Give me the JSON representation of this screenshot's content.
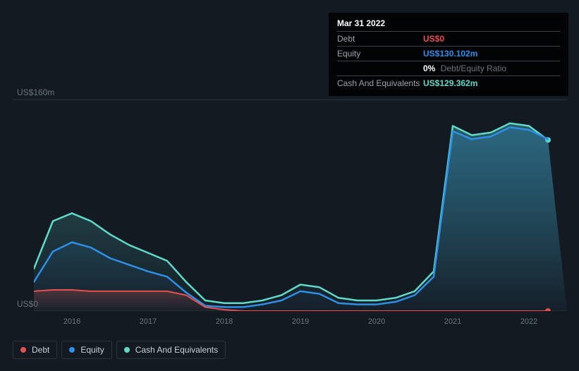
{
  "chart": {
    "type": "area",
    "background": "#131a22",
    "grid_color": "#2a333d",
    "ymax": 160,
    "ymin": 0,
    "ylabel_top": "US$160m",
    "ylabel_bottom": "US$0",
    "ylabel_color": "#6b7681",
    "xticks": [
      "2016",
      "2017",
      "2018",
      "2019",
      "2020",
      "2021",
      "2022"
    ],
    "x_start": 2015.5,
    "x_end": 2022.5,
    "x": [
      2015.5,
      2015.75,
      2016,
      2016.25,
      2016.5,
      2016.75,
      2017,
      2017.25,
      2017.5,
      2017.75,
      2018,
      2018.25,
      2018.5,
      2018.75,
      2019,
      2019.25,
      2019.5,
      2019.75,
      2020,
      2020.25,
      2020.5,
      2020.75,
      2021,
      2021.25,
      2021.5,
      2021.75,
      2022,
      2022.25
    ],
    "series": [
      {
        "key": "cash",
        "label": "Cash And Equivalents",
        "color": "#5fd9c9",
        "fill_from": "#2a5b5f",
        "fill_to": "rgba(42,91,95,0.05)",
        "stroke_width": 2.5,
        "values": [
          32,
          68,
          74,
          68,
          58,
          50,
          44,
          38,
          22,
          8,
          6,
          6,
          8,
          12,
          20,
          18,
          10,
          8,
          8,
          10,
          15,
          30,
          140,
          133,
          135,
          142,
          140,
          129.362
        ],
        "end_marker": true
      },
      {
        "key": "equity",
        "label": "Equity",
        "color": "#2f8fe6",
        "fill_from": "rgba(47,143,230,0.25)",
        "fill_to": "rgba(47,143,230,0.02)",
        "stroke_width": 2.5,
        "values": [
          22,
          45,
          52,
          48,
          40,
          35,
          30,
          26,
          14,
          4,
          3,
          3,
          5,
          8,
          15,
          13,
          6,
          5,
          5,
          7,
          12,
          26,
          136,
          130,
          132,
          139,
          137,
          130.102
        ],
        "end_marker": false
      },
      {
        "key": "debt",
        "label": "Debt",
        "color": "#e6514f",
        "fill_from": "rgba(230,81,79,0.25)",
        "fill_to": "rgba(230,81,79,0.02)",
        "stroke_width": 2,
        "values": [
          15,
          16,
          16,
          15,
          15,
          15,
          15,
          15,
          12,
          3,
          1,
          0,
          0,
          0,
          0,
          0,
          0,
          0,
          0,
          0,
          0,
          0,
          0,
          0,
          0,
          0,
          0,
          0
        ],
        "end_marker": true
      }
    ]
  },
  "tooltip": {
    "title": "Mar 31 2022",
    "rows": [
      {
        "label": "Debt",
        "value": "US$0",
        "color": "#e6514f"
      },
      {
        "label": "Equity",
        "value": "US$130.102m",
        "color": "#2f8fe6"
      },
      {
        "label": "",
        "value": "0%",
        "extra": "Debt/Equity Ratio",
        "color": "#ffffff"
      },
      {
        "label": "Cash And Equivalents",
        "value": "US$129.362m",
        "color": "#5fd9c9"
      }
    ]
  },
  "legend": [
    {
      "label": "Debt",
      "color": "#e6514f"
    },
    {
      "label": "Equity",
      "color": "#2f8fe6"
    },
    {
      "label": "Cash And Equivalents",
      "color": "#5fd9c9"
    }
  ]
}
